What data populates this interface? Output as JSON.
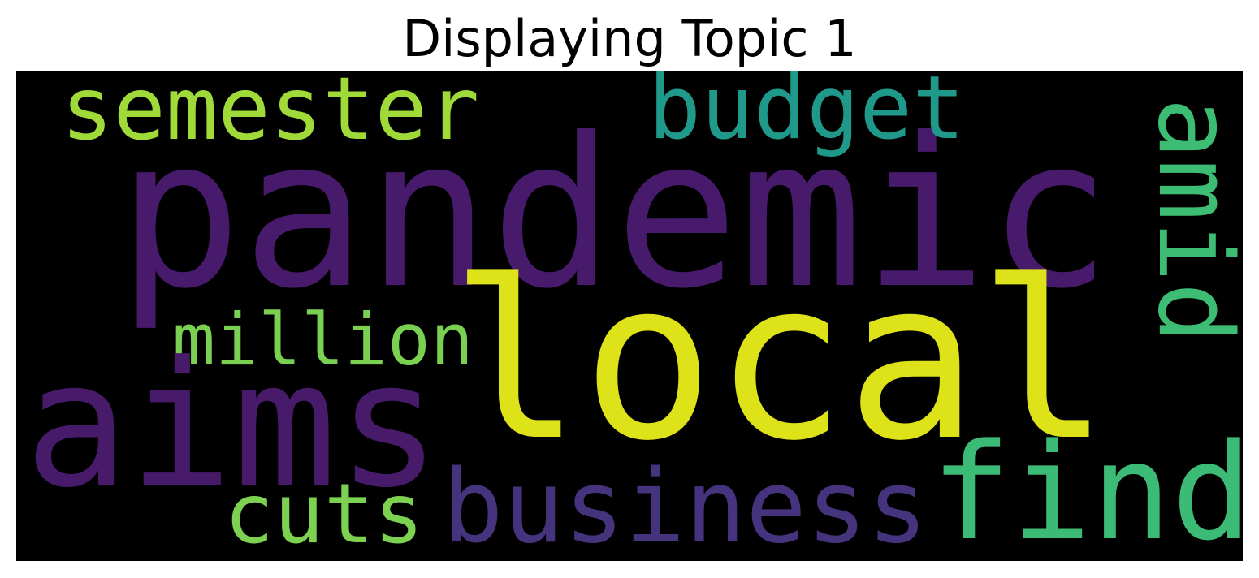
{
  "title": "Displaying Topic 1",
  "words": {
    "pandemic": {
      "text": "pandemic",
      "color": "#481a6c"
    },
    "local": {
      "text": "local",
      "color": "#dde318"
    },
    "aims": {
      "text": "aims",
      "color": "#471a6a"
    },
    "semester": {
      "text": "semester",
      "color": "#a0da39"
    },
    "budget": {
      "text": "budget",
      "color": "#1f9a8a"
    },
    "amid": {
      "text": "amid",
      "color": "#3dbc74"
    },
    "million": {
      "text": "million",
      "color": "#7ad151"
    },
    "cuts": {
      "text": "cuts",
      "color": "#7cd250"
    },
    "business": {
      "text": "business",
      "color": "#46337e"
    },
    "find": {
      "text": "find",
      "color": "#3bbb75"
    }
  }
}
